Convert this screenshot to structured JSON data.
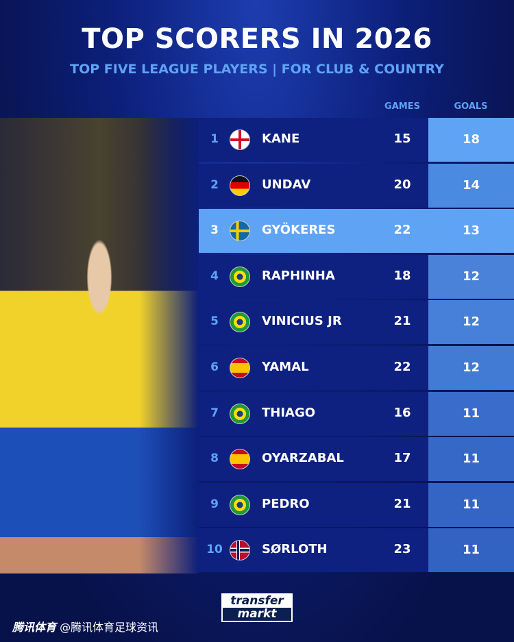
{
  "title": "TOP SCORERS IN 2026",
  "subtitle": "TOP FIVE LEAGUE PLAYERS | FOR CLUB & COUNTRY",
  "columns": {
    "games": "GAMES",
    "goals": "GOALS"
  },
  "rows": [
    {
      "rank": "1",
      "flag": "england",
      "name": "KANE",
      "games": "15",
      "goals": "18"
    },
    {
      "rank": "2",
      "flag": "germany",
      "name": "UNDAV",
      "games": "20",
      "goals": "14"
    },
    {
      "rank": "3",
      "flag": "sweden",
      "name": "GYÖKERES",
      "games": "22",
      "goals": "13",
      "highlight": true
    },
    {
      "rank": "4",
      "flag": "brazil",
      "name": "RAPHINHA",
      "games": "18",
      "goals": "12"
    },
    {
      "rank": "5",
      "flag": "brazil",
      "name": "VINICIUS JR",
      "games": "21",
      "goals": "12"
    },
    {
      "rank": "6",
      "flag": "spain",
      "name": "YAMAL",
      "games": "22",
      "goals": "12"
    },
    {
      "rank": "7",
      "flag": "brazil",
      "name": "THIAGO",
      "games": "16",
      "goals": "11"
    },
    {
      "rank": "8",
      "flag": "spain",
      "name": "OYARZABAL",
      "games": "17",
      "goals": "11"
    },
    {
      "rank": "9",
      "flag": "brazil",
      "name": "PEDRO",
      "games": "21",
      "goals": "11"
    },
    {
      "rank": "10",
      "flag": "norway",
      "name": "SØRLOTH",
      "games": "23",
      "goals": "11"
    }
  ],
  "colors": {
    "accent": "#5fa3f5",
    "row": "#0e2080"
  },
  "logo": {
    "line1": "transfer",
    "line2": "markt"
  },
  "footer": {
    "brand": "腾讯体育",
    "handle": "@腾讯体育足球资讯"
  }
}
